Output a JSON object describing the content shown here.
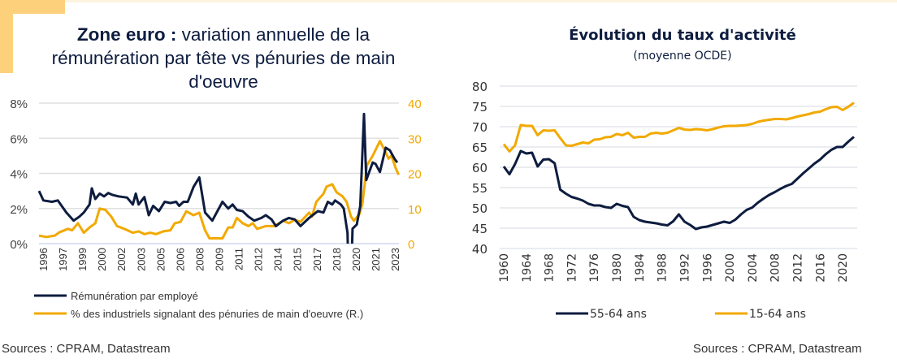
{
  "left": {
    "title_bold": "Zone euro :",
    "title_rest": " variation annuelle de la rémunération par tête vs pénuries de main d'oeuvre",
    "source": "Sources : CPRAM, Datastream"
  },
  "right": {
    "title": "Évolution du taux d'activité",
    "subtitle": "(moyenne OCDE)",
    "source": "Sources : CPRAM, Datastream"
  },
  "chart_data": [
    {
      "type": "line",
      "title": "Zone euro : variation annuelle de la rémunération par tête vs pénuries de main d'oeuvre",
      "xlim": [
        1996,
        2024
      ],
      "ylim": [
        0,
        8
      ],
      "y2lim": [
        0,
        40
      ],
      "yticks": [
        "0%",
        "2%",
        "4%",
        "6%",
        "8%"
      ],
      "y2ticks": [
        "0",
        "10",
        "20",
        "30",
        "40"
      ],
      "xticks": [
        "1996",
        "1997",
        "1999",
        "2000",
        "2002",
        "2003",
        "2005",
        "2006",
        "2008",
        "2009",
        "2011",
        "2012",
        "2014",
        "2015",
        "2017",
        "2018",
        "2020",
        "2021",
        "2023"
      ],
      "colors": {
        "s1": "#0d1c3f",
        "s2": "#f2a900"
      },
      "legend_position": "bottom",
      "series": [
        {
          "name": "Rémunération par employé",
          "axis": "left",
          "x": [
            1996.0,
            1996.34,
            1997.01,
            1997.46,
            1998.13,
            1998.7,
            1999.15,
            1999.48,
            1999.93,
            2000.11,
            2000.38,
            2000.72,
            2001.06,
            2001.39,
            2001.73,
            2002.18,
            2002.85,
            2003.3,
            2003.53,
            2003.75,
            2004.2,
            2004.54,
            2004.88,
            2005.33,
            2005.78,
            2006.22,
            2006.67,
            2006.9,
            2007.24,
            2007.57,
            2008.02,
            2008.47,
            2008.92,
            2009.48,
            2010.27,
            2010.72,
            2011.06,
            2011.39,
            2011.84,
            2012.29,
            2012.74,
            2013.3,
            2013.64,
            2014.09,
            2014.43,
            2014.99,
            2015.44,
            2015.89,
            2016.34,
            2017.01,
            2017.69,
            2018.13,
            2018.47,
            2018.81,
            2019.03,
            2019.48,
            2019.71,
            2020.0,
            2020.04,
            2020.34,
            2020.39,
            2020.72,
            2020.99,
            2021.28,
            2021.46,
            2021.96,
            2022.18,
            2022.52,
            2022.97,
            2023.3,
            2023.64,
            2023.87
          ],
          "values": [
            3.0,
            2.46,
            2.38,
            2.46,
            1.77,
            1.31,
            1.54,
            1.77,
            2.23,
            3.15,
            2.54,
            2.85,
            2.69,
            2.88,
            2.77,
            2.69,
            2.62,
            2.23,
            2.85,
            2.23,
            2.65,
            1.62,
            2.15,
            1.85,
            2.38,
            2.31,
            2.38,
            2.15,
            2.38,
            2.38,
            3.23,
            3.77,
            1.77,
            1.31,
            2.38,
            2.0,
            2.23,
            1.92,
            1.85,
            1.54,
            1.31,
            1.46,
            1.62,
            1.38,
            1.0,
            1.31,
            1.46,
            1.38,
            1.0,
            1.46,
            1.85,
            1.77,
            2.38,
            2.23,
            2.46,
            2.23,
            2.0,
            0.62,
            -0.5,
            -0.5,
            0.85,
            1.08,
            2.15,
            7.38,
            3.62,
            4.62,
            4.54,
            4.08,
            5.46,
            5.31,
            4.85,
            4.62
          ]
        },
        {
          "name": "% des industriels signalant des pénuries de main d'oeuvre (R.)",
          "axis": "right",
          "x": [
            1996.0,
            1996.56,
            1997.24,
            1997.57,
            1998.25,
            1998.58,
            1999.03,
            1999.48,
            1999.93,
            2000.38,
            2000.72,
            2001.17,
            2001.62,
            2002.07,
            2002.63,
            2003.3,
            2003.75,
            2004.2,
            2004.65,
            2005.1,
            2005.67,
            2006.22,
            2006.56,
            2007.01,
            2007.46,
            2008.02,
            2008.47,
            2008.92,
            2009.26,
            2009.82,
            2010.27,
            2010.72,
            2011.06,
            2011.39,
            2011.84,
            2012.29,
            2012.63,
            2012.97,
            2013.64,
            2014.31,
            2014.99,
            2015.44,
            2015.89,
            2016.34,
            2017.01,
            2017.24,
            2017.57,
            2018.13,
            2018.36,
            2018.81,
            2019.15,
            2019.6,
            2019.93,
            2020.27,
            2020.49,
            2020.94,
            2021.16,
            2021.51,
            2021.96,
            2022.52,
            2022.85,
            2023.19,
            2023.42,
            2023.75,
            2023.98
          ],
          "values": [
            2.3,
            1.9,
            2.3,
            3.2,
            4.2,
            3.8,
            5.8,
            3.1,
            4.6,
            5.8,
            10.0,
            9.6,
            7.7,
            5.0,
            4.2,
            3.1,
            3.5,
            2.7,
            3.1,
            2.7,
            3.5,
            3.8,
            5.8,
            6.2,
            9.2,
            8.1,
            8.8,
            3.8,
            1.5,
            1.5,
            1.5,
            4.6,
            4.6,
            7.3,
            5.8,
            5.0,
            5.8,
            4.2,
            5.0,
            5.0,
            6.5,
            5.8,
            6.8,
            6.2,
            8.8,
            7.7,
            11.9,
            14.2,
            16.2,
            16.9,
            14.6,
            13.5,
            11.9,
            7.7,
            6.5,
            8.5,
            11.5,
            22.3,
            25.0,
            29.2,
            26.9,
            24.2,
            25.0,
            21.5,
            19.6
          ]
        }
      ]
    },
    {
      "type": "line",
      "title": "Évolution du taux d'activité",
      "subtitle": "(moyenne OCDE)",
      "xlim": [
        1960,
        2022
      ],
      "ylim": [
        40,
        80
      ],
      "yticks": [
        "40",
        "45",
        "50",
        "55",
        "60",
        "65",
        "70",
        "75",
        "80"
      ],
      "xticks": [
        "1960",
        "1964",
        "1968",
        "1972",
        "1976",
        "1980",
        "1984",
        "1988",
        "1992",
        "1996",
        "2000",
        "2004",
        "2008",
        "2012",
        "2016",
        "2020"
      ],
      "colors": {
        "s1": "#0d1c3f",
        "s2": "#f2a900"
      },
      "legend_position": "bottom",
      "x_start": 1960,
      "series": [
        {
          "name": "55-64 ans",
          "values": [
            60.2,
            58.3,
            60.8,
            64.0,
            63.4,
            63.6,
            60.2,
            61.9,
            62.0,
            61.0,
            54.5,
            53.5,
            52.7,
            52.3,
            51.8,
            51.0,
            50.6,
            50.6,
            50.2,
            50.0,
            51.0,
            50.5,
            50.2,
            47.8,
            47.0,
            46.6,
            46.4,
            46.2,
            45.9,
            45.7,
            46.7,
            48.4,
            46.6,
            45.8,
            44.8,
            45.2,
            45.4,
            45.8,
            46.2,
            46.6,
            46.3,
            47.1,
            48.4,
            49.5,
            50.1,
            51.3,
            52.3,
            53.2,
            53.9,
            54.7,
            55.4,
            55.9,
            57.2,
            58.5,
            59.7,
            60.9,
            61.9,
            63.2,
            64.3,
            65.0,
            65.0,
            66.3,
            67.5
          ]
        },
        {
          "name": "15-64 ans",
          "values": [
            65.7,
            63.9,
            65.4,
            70.4,
            70.2,
            70.2,
            67.9,
            69.1,
            69.0,
            69.1,
            67.2,
            65.4,
            65.3,
            65.7,
            66.1,
            65.9,
            66.8,
            66.9,
            67.4,
            67.5,
            68.2,
            67.9,
            68.5,
            67.3,
            67.5,
            67.5,
            68.3,
            68.5,
            68.3,
            68.5,
            69.1,
            69.7,
            69.3,
            69.2,
            69.4,
            69.3,
            69.1,
            69.4,
            69.8,
            70.1,
            70.2,
            70.2,
            70.3,
            70.4,
            70.7,
            71.2,
            71.5,
            71.7,
            71.9,
            71.9,
            71.8,
            72.1,
            72.5,
            72.8,
            73.1,
            73.5,
            73.7,
            74.3,
            74.8,
            74.9,
            74.1,
            74.9,
            75.9
          ]
        }
      ]
    }
  ]
}
